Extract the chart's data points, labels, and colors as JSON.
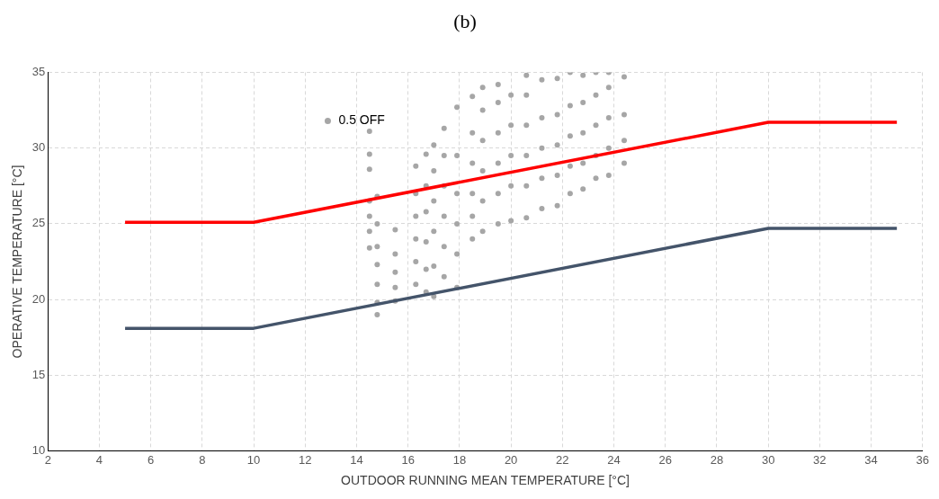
{
  "chart_data": {
    "type": "scatter",
    "title": "(b)",
    "xlabel": "OUTDOOR RUNNING MEAN TEMPERATURE [°C]",
    "ylabel": "OPERATIVE TEMPERATURE [°C]",
    "xlim": [
      2,
      36
    ],
    "xticks": [
      2,
      4,
      6,
      8,
      10,
      12,
      14,
      16,
      18,
      20,
      22,
      24,
      26,
      28,
      30,
      32,
      34,
      36
    ],
    "ylim": [
      10,
      35
    ],
    "yticks": [
      10,
      15,
      20,
      25,
      30,
      35
    ],
    "grid": true,
    "legend": "top left",
    "series": [
      {
        "type": "line",
        "marker": "none",
        "color": "#ff0000",
        "x": [
          5,
          10,
          30,
          35
        ],
        "values": [
          25.1,
          25.1,
          31.7,
          31.7
        ]
      },
      {
        "type": "line",
        "marker": "none",
        "color": "#44546a",
        "x": [
          5,
          10,
          30,
          35
        ],
        "values": [
          18.1,
          18.1,
          24.7,
          24.7
        ]
      },
      {
        "type": "scatter",
        "marker": "circle",
        "name": "0.5 OFF",
        "color": "#a6a6a6",
        "x": [
          14.5,
          14.5,
          14.5,
          14.5,
          14.5,
          14.5,
          14.5,
          14.8,
          14.8,
          14.8,
          14.8,
          14.8,
          14.8,
          14.8,
          15.5,
          15.5,
          15.5,
          15.5,
          15.5,
          16.3,
          16.3,
          16.3,
          16.3,
          16.3,
          16.3,
          16.7,
          16.7,
          16.7,
          16.7,
          16.7,
          16.7,
          17.0,
          17.0,
          17.0,
          17.0,
          17.0,
          17.0,
          17.4,
          17.4,
          17.4,
          17.4,
          17.4,
          17.4,
          17.9,
          17.9,
          17.9,
          17.9,
          17.9,
          17.9,
          18.5,
          18.5,
          18.5,
          18.5,
          18.5,
          18.5,
          18.9,
          18.9,
          18.9,
          18.9,
          18.9,
          18.9,
          19.5,
          19.5,
          19.5,
          19.5,
          19.5,
          19.5,
          20.0,
          20.0,
          20.0,
          20.0,
          20.0,
          20.6,
          20.6,
          20.6,
          20.6,
          20.6,
          20.6,
          21.2,
          21.2,
          21.2,
          21.2,
          21.2,
          21.8,
          21.8,
          21.8,
          21.8,
          21.8,
          22.3,
          22.3,
          22.3,
          22.3,
          22.3,
          22.8,
          22.8,
          22.8,
          22.8,
          22.8,
          23.3,
          23.3,
          23.3,
          23.3,
          23.3,
          23.8,
          23.8,
          23.8,
          23.8,
          23.8,
          24.4,
          24.4,
          24.4,
          24.4
        ],
        "values": [
          23.4,
          24.5,
          25.5,
          26.5,
          28.6,
          29.6,
          31.1,
          19.0,
          19.8,
          21.0,
          22.3,
          23.5,
          25.0,
          26.8,
          19.9,
          20.8,
          21.8,
          23.0,
          24.6,
          21.0,
          22.5,
          24.0,
          25.5,
          27.0,
          28.8,
          20.5,
          22.0,
          23.8,
          25.8,
          27.5,
          29.6,
          20.2,
          22.2,
          24.5,
          26.5,
          28.5,
          30.2,
          21.5,
          23.5,
          25.5,
          27.5,
          29.5,
          31.3,
          20.8,
          23.0,
          25.0,
          27.0,
          29.5,
          32.7,
          24.0,
          25.5,
          27.0,
          29.0,
          31.0,
          33.4,
          24.5,
          26.5,
          28.5,
          30.5,
          32.5,
          34.0,
          25.0,
          27.0,
          29.0,
          31.0,
          33.0,
          34.2,
          25.2,
          27.5,
          29.5,
          31.5,
          33.5,
          25.4,
          27.5,
          29.5,
          31.5,
          33.5,
          34.8,
          26.0,
          28.0,
          30.0,
          32.0,
          34.5,
          26.2,
          28.2,
          30.2,
          32.2,
          34.6,
          27.0,
          28.8,
          30.8,
          32.8,
          35.0,
          27.3,
          29.0,
          31.0,
          33.0,
          34.8,
          28.0,
          29.5,
          31.5,
          33.5,
          35.0,
          28.2,
          30.0,
          32.0,
          34.0,
          35.0,
          29.0,
          30.5,
          32.2,
          34.7
        ]
      }
    ]
  }
}
